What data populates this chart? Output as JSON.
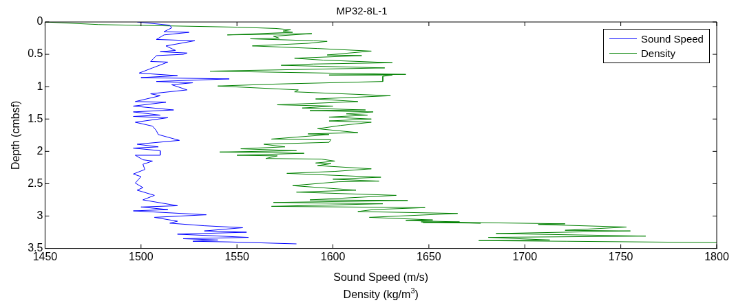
{
  "chart_data": {
    "type": "line",
    "title": "MP32-8L-1",
    "xlabel": "Sound Speed (m/s)",
    "ylabel": "Depth (cmbsf)",
    "annotations": [
      "Density (kg/m$^{3}$)"
    ],
    "xlim": [
      1450,
      1800
    ],
    "xticks": [
      1450,
      1500,
      1550,
      1600,
      1650,
      1700,
      1750,
      1800
    ],
    "ylim": [
      3.5,
      0
    ],
    "yticks": [
      0,
      0.5,
      1,
      1.5,
      2,
      2.5,
      3,
      3.5
    ],
    "grid": false,
    "legend": "top right",
    "marker": "none",
    "line_style": "solid",
    "series": [
      {
        "name": "Sound Speed",
        "color": "#0000ff",
        "x": [
          1498,
          1515,
          1516,
          1512,
          1525,
          1512,
          1508,
          1528,
          1513,
          1518,
          1510,
          1524,
          1522,
          1508,
          1505,
          1514,
          1506,
          1499,
          1519,
          1500,
          1546,
          1508,
          1527,
          1516,
          1524,
          1505,
          1510,
          1497,
          1513,
          1496,
          1517,
          1496,
          1510,
          1496,
          1514,
          1497,
          1506,
          1508,
          1509,
          1520,
          1498,
          1509,
          1496,
          1510,
          1510,
          1497,
          1501,
          1506,
          1501,
          1502,
          1496,
          1500,
          1497,
          1501,
          1498,
          1507,
          1501,
          1519,
          1500,
          1514,
          1496,
          1534,
          1507,
          1519,
          1515,
          1533,
          1553,
          1533,
          1555,
          1519,
          1556,
          1522,
          1540,
          1527,
          1546,
          1581
        ],
        "values": [
          0,
          0.05,
          0.09,
          0.15,
          0.16,
          0.2,
          0.27,
          0.29,
          0.37,
          0.44,
          0.46,
          0.48,
          0.5,
          0.52,
          0.61,
          0.62,
          0.71,
          0.79,
          0.83,
          0.86,
          0.88,
          0.92,
          0.94,
          0.97,
          1.05,
          1.11,
          1.14,
          1.23,
          1.24,
          1.3,
          1.36,
          1.39,
          1.44,
          1.46,
          1.48,
          1.55,
          1.61,
          1.68,
          1.74,
          1.83,
          1.89,
          1.93,
          1.95,
          1.99,
          2.06,
          2.06,
          2.13,
          2.15,
          2.2,
          2.28,
          2.35,
          2.39,
          2.49,
          2.56,
          2.6,
          2.68,
          2.75,
          2.84,
          2.86,
          2.9,
          2.92,
          2.98,
          3.02,
          3.08,
          3.11,
          3.15,
          3.18,
          3.23,
          3.25,
          3.28,
          3.33,
          3.35,
          3.37,
          3.39,
          3.4,
          3.43
        ]
      },
      {
        "name": "Density",
        "color": "#008000",
        "x": [
          1450,
          1478,
          1550,
          1570,
          1578,
          1574,
          1579,
          1545,
          1589,
          1569,
          1572,
          1557,
          1590,
          1597,
          1587,
          1558,
          1592,
          1620,
          1597,
          1615,
          1580,
          1595,
          1631,
          1590,
          1573,
          1627,
          1536,
          1638,
          1598,
          1631,
          1626,
          1626,
          1570,
          1540,
          1582,
          1580,
          1630,
          1591,
          1613,
          1571,
          1600,
          1584,
          1617,
          1588,
          1621,
          1607,
          1618,
          1598,
          1620,
          1598,
          1620,
          1604,
          1592,
          1613,
          1587,
          1598,
          1568,
          1599,
          1598,
          1564,
          1575,
          1552,
          1581,
          1541,
          1585,
          1550,
          1571,
          1565,
          1594,
          1601,
          1591,
          1599,
          1592,
          1620,
          1601,
          1576,
          1625,
          1600,
          1624,
          1603,
          1579,
          1612,
          1581,
          1633,
          1588,
          1639,
          1569,
          1626,
          1568,
          1648,
          1621,
          1613,
          1665,
          1619,
          1652,
          1638,
          1666,
          1647,
          1677,
          1646,
          1721,
          1707,
          1753,
          1721,
          1755,
          1685,
          1763,
          1681,
          1713,
          1676,
          1722,
          1800
        ],
        "values": [
          0,
          0.04,
          0.08,
          0.1,
          0.12,
          0.14,
          0.16,
          0.2,
          0.18,
          0.22,
          0.25,
          0.26,
          0.29,
          0.3,
          0.33,
          0.37,
          0.41,
          0.45,
          0.51,
          0.52,
          0.56,
          0.59,
          0.63,
          0.65,
          0.67,
          0.71,
          0.76,
          0.81,
          0.82,
          0.82,
          0.84,
          0.92,
          0.96,
          0.99,
          1.05,
          1.08,
          1.14,
          1.19,
          1.23,
          1.28,
          1.3,
          1.33,
          1.36,
          1.37,
          1.39,
          1.42,
          1.44,
          1.47,
          1.5,
          1.53,
          1.55,
          1.6,
          1.65,
          1.71,
          1.73,
          1.74,
          1.81,
          1.82,
          1.86,
          1.89,
          1.93,
          1.96,
          1.99,
          2.01,
          2.03,
          2.06,
          2.07,
          2.11,
          2.12,
          2.15,
          2.18,
          2.19,
          2.22,
          2.27,
          2.31,
          2.34,
          2.4,
          2.43,
          2.46,
          2.47,
          2.53,
          2.6,
          2.63,
          2.68,
          2.75,
          2.76,
          2.79,
          2.81,
          2.85,
          2.87,
          2.9,
          2.93,
          2.96,
          3.02,
          3.06,
          3.07,
          3.09,
          3.1,
          3.11,
          3.09,
          3.12,
          3.13,
          3.17,
          3.22,
          3.23,
          3.27,
          3.31,
          3.33,
          3.37,
          3.38,
          3.39,
          3.41
        ]
      }
    ]
  }
}
